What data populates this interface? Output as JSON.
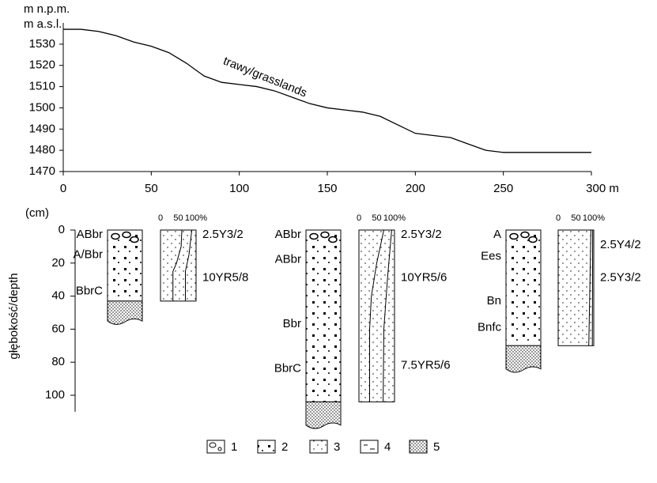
{
  "chart_data": {
    "type": "line",
    "y_label": "m n.p.m.",
    "y_label_en": "m a.s.l.",
    "annotation": "trawy/grasslands",
    "x": [
      0,
      10,
      20,
      30,
      40,
      50,
      60,
      70,
      80,
      90,
      100,
      110,
      120,
      130,
      140,
      150,
      160,
      170,
      180,
      190,
      200,
      210,
      220,
      230,
      240,
      250,
      260,
      300
    ],
    "series": [
      {
        "color": "#000000",
        "values": [
          1537,
          1537,
          1536,
          1534,
          1531,
          1529,
          1526,
          1521,
          1515,
          1512,
          1511,
          1510,
          1508,
          1505,
          1502,
          1500,
          1499,
          1498,
          1496,
          1492,
          1488,
          1487,
          1486,
          1483,
          1480,
          1479,
          1479,
          1479
        ]
      }
    ],
    "xlim": [
      0,
      300
    ],
    "xticks": [
      0,
      50,
      100,
      150,
      200,
      250,
      {
        "value": 300,
        "label": "300 m"
      }
    ],
    "ylim": [
      1470,
      1540
    ],
    "yticks": [
      1470,
      1480,
      1490,
      1500,
      1510,
      1520,
      1530
    ]
  },
  "depth_axis": {
    "unit": "(cm)",
    "title": "głębokość/depth",
    "lim": [
      0,
      110
    ],
    "ticks": [
      0,
      20,
      40,
      60,
      80,
      100
    ]
  },
  "percent_ticks": [
    0,
    50,
    {
      "value": 100,
      "label": "100%"
    }
  ],
  "profiles": [
    {
      "solum_depth": 43,
      "base_depth": 57,
      "horizons": [
        {
          "label": "ABbr",
          "depth": 3
        },
        {
          "label": "A/Bbr",
          "depth": 15
        },
        {
          "label": "BbrC",
          "depth": 37
        }
      ],
      "colors": [
        {
          "label": "2.5Y3/2",
          "depth": 3
        },
        {
          "label": "10YR5/8",
          "depth": 29
        }
      ],
      "fractions": [
        [
          [
            0,
            60
          ],
          [
            10,
            58
          ],
          [
            20,
            45
          ],
          [
            25,
            35
          ],
          [
            43,
            35
          ]
        ],
        [
          [
            0,
            88
          ],
          [
            15,
            80
          ],
          [
            25,
            70
          ],
          [
            43,
            70
          ]
        ]
      ]
    },
    {
      "solum_depth": 104,
      "base_depth": 120,
      "horizons": [
        {
          "label": "ABbr",
          "depth": 3
        },
        {
          "label": "ABbr",
          "depth": 18
        },
        {
          "label": "Bbr",
          "depth": 57
        },
        {
          "label": "BbrC",
          "depth": 84
        }
      ],
      "colors": [
        {
          "label": "2.5Y3/2",
          "depth": 3
        },
        {
          "label": "10YR5/6",
          "depth": 29
        },
        {
          "label": "7.5YR5/6",
          "depth": 82
        }
      ],
      "fractions": [
        [
          [
            0,
            70
          ],
          [
            20,
            50
          ],
          [
            40,
            35
          ],
          [
            60,
            30
          ],
          [
            104,
            30
          ]
        ],
        [
          [
            0,
            92
          ],
          [
            30,
            80
          ],
          [
            60,
            70
          ],
          [
            104,
            68
          ]
        ]
      ]
    },
    {
      "solum_depth": 70,
      "base_depth": 86,
      "horizons": [
        {
          "label": "A",
          "depth": 3
        },
        {
          "label": "Ees",
          "depth": 16
        },
        {
          "label": "Bn",
          "depth": 43
        },
        {
          "label": "Bnfc",
          "depth": 59
        }
      ],
      "colors": [
        {
          "label": "2.5Y4/2",
          "depth": 9
        },
        {
          "label": "2.5Y3/2",
          "depth": 29
        }
      ],
      "fractions": [
        [
          [
            0,
            92
          ],
          [
            70,
            86
          ]
        ],
        [
          [
            0,
            97
          ],
          [
            70,
            96
          ]
        ]
      ]
    }
  ],
  "legend": [
    "1",
    "2",
    "3",
    "4",
    "5"
  ]
}
